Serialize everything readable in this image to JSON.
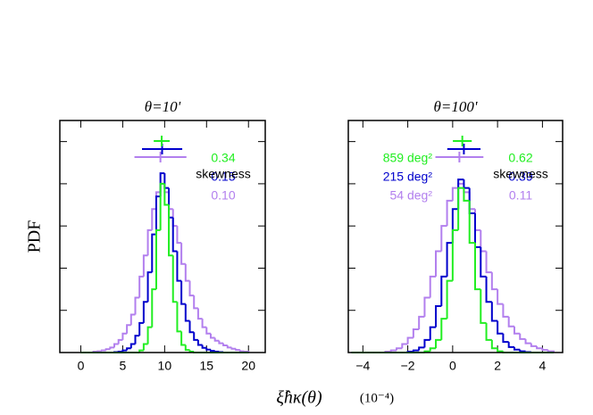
{
  "ylabel": "PDF",
  "xlabel": "ξ̂hκ(θ)",
  "xunit": "(10⁻⁴)",
  "chart_data": [
    {
      "type": "histogram",
      "title": "θ=10'",
      "bins": [
        0,
        0.5,
        1,
        1.5,
        2,
        2.5,
        3,
        3.5,
        4,
        4.5,
        5,
        5.5,
        6,
        6.5,
        7,
        7.5,
        8,
        8.5,
        9,
        9.5,
        10,
        10.5,
        11,
        11.5,
        12,
        12.5,
        13,
        13.5,
        14,
        14.5,
        15,
        15.5,
        16,
        16.5,
        17,
        17.5,
        18,
        18.5,
        19,
        19.5,
        20
      ],
      "xlim": [
        -2.5,
        22
      ],
      "xticks": [
        0,
        5,
        10,
        15,
        20
      ],
      "ylim": [
        0,
        5.5
      ],
      "yticks": [
        1,
        2,
        3,
        4,
        5
      ],
      "legend": false,
      "series": [
        {
          "color": "#b27fee",
          "mean": 9.5,
          "error": 3.1,
          "values": [
            0,
            0,
            0,
            0.02,
            0.03,
            0.05,
            0.08,
            0.12,
            0.2,
            0.3,
            0.45,
            0.65,
            0.9,
            1.3,
            1.8,
            2.3,
            2.9,
            3.4,
            3.8,
            4.0,
            3.8,
            3.4,
            3.0,
            2.6,
            2.1,
            1.7,
            1.35,
            1.05,
            0.8,
            0.6,
            0.45,
            0.35,
            0.28,
            0.22,
            0.17,
            0.12,
            0.09,
            0.06,
            0.03,
            0.02
          ]
        },
        {
          "color": "#0000cc",
          "mean": 9.7,
          "error": 2.4,
          "values": [
            0,
            0,
            0,
            0,
            0,
            0,
            0,
            0,
            0.01,
            0.02,
            0.05,
            0.1,
            0.2,
            0.4,
            0.7,
            1.2,
            1.9,
            2.8,
            3.7,
            4.25,
            3.9,
            3.2,
            2.4,
            1.7,
            1.15,
            0.75,
            0.48,
            0.3,
            0.18,
            0.11,
            0.07,
            0.04,
            0.02,
            0.01,
            0,
            0,
            0,
            0,
            0,
            0
          ]
        },
        {
          "color": "#22ee22",
          "mean": 9.65,
          "error": 0.95,
          "values": [
            0,
            0,
            0,
            0,
            0,
            0,
            0,
            0,
            0,
            0,
            0,
            0,
            0,
            0,
            0.05,
            0.2,
            0.6,
            1.5,
            2.9,
            4.0,
            3.5,
            2.3,
            1.2,
            0.5,
            0.18,
            0.06,
            0.02,
            0,
            0,
            0,
            0,
            0,
            0,
            0,
            0,
            0,
            0,
            0,
            0,
            0
          ]
        }
      ],
      "skewness": {
        "title": "skewness",
        "values": [
          0.1,
          0.15,
          0.34
        ],
        "value_labels": [
          "0.10",
          "0.15",
          "0.34"
        ]
      }
    },
    {
      "type": "histogram",
      "title": "θ=100'",
      "bins": [
        -4.5,
        -4.25,
        -4,
        -3.75,
        -3.5,
        -3.25,
        -3,
        -2.75,
        -2.5,
        -2.25,
        -2,
        -1.75,
        -1.5,
        -1.25,
        -1,
        -0.75,
        -0.5,
        -0.25,
        0,
        0.25,
        0.5,
        0.75,
        1,
        1.25,
        1.5,
        1.75,
        2,
        2.25,
        2.5,
        2.75,
        3,
        3.25,
        3.5,
        3.75,
        4,
        4.25,
        4.5
      ],
      "xlim": [
        -4.65,
        4.9
      ],
      "xticks": [
        {
          "value": -4,
          "label": "−4"
        },
        {
          "value": -2,
          "label": "−2"
        },
        0,
        2,
        4
      ],
      "ylim": [
        0,
        5.5
      ],
      "yticks": [
        1,
        2,
        3,
        4,
        5
      ],
      "legend": true,
      "series": [
        {
          "name": "54 deg²",
          "color": "#b27fee",
          "mean": 0.3,
          "error": 1.07,
          "values": [
            0,
            0,
            0,
            0,
            0,
            0,
            0.02,
            0.05,
            0.1,
            0.2,
            0.35,
            0.55,
            0.85,
            1.3,
            1.8,
            2.4,
            3.0,
            3.6,
            3.9,
            4.0,
            3.8,
            3.4,
            2.9,
            2.4,
            1.9,
            1.5,
            1.15,
            0.85,
            0.62,
            0.45,
            0.32,
            0.22,
            0.15,
            0.1,
            0.06,
            0.03
          ]
        },
        {
          "name": "215 deg²",
          "color": "#0000cc",
          "mean": 0.5,
          "error": 0.74,
          "values": [
            0,
            0,
            0,
            0,
            0,
            0,
            0,
            0,
            0,
            0,
            0.02,
            0.05,
            0.12,
            0.3,
            0.6,
            1.1,
            1.8,
            2.6,
            3.4,
            4.1,
            3.9,
            3.3,
            2.5,
            1.8,
            1.2,
            0.75,
            0.45,
            0.25,
            0.13,
            0.07,
            0.03,
            0.01,
            0,
            0,
            0,
            0
          ]
        },
        {
          "name": "859 deg²",
          "color": "#22ee22",
          "mean": 0.43,
          "error": 0.42,
          "values": [
            0,
            0,
            0,
            0,
            0,
            0,
            0,
            0,
            0,
            0,
            0,
            0,
            0,
            0.03,
            0.1,
            0.3,
            0.8,
            1.7,
            2.9,
            3.9,
            3.6,
            2.6,
            1.5,
            0.7,
            0.3,
            0.1,
            0.03,
            0,
            0,
            0,
            0,
            0,
            0,
            0,
            0,
            0
          ]
        }
      ],
      "skewness": {
        "title": "skewness",
        "values": [
          0.11,
          0.39,
          0.62
        ],
        "value_labels": [
          "0.11",
          "0.39",
          "0.62"
        ]
      }
    }
  ]
}
